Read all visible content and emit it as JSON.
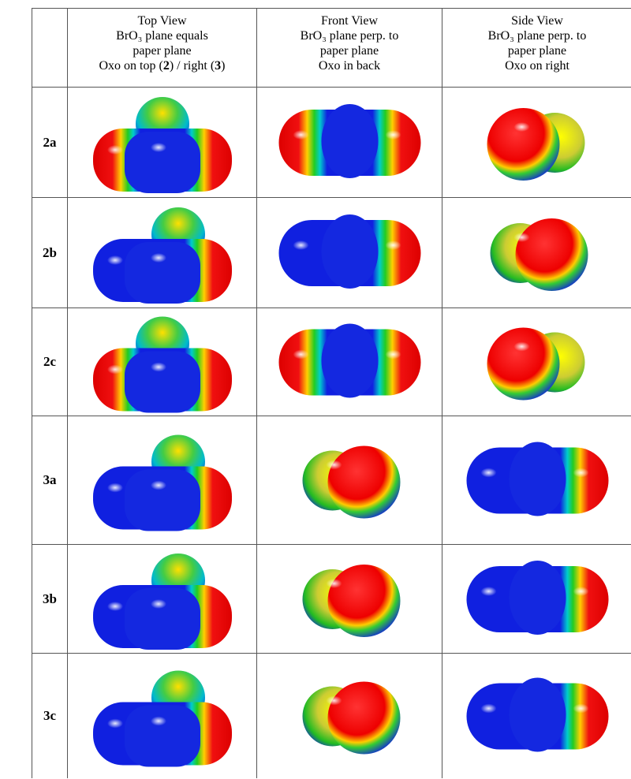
{
  "header": {
    "columns": [
      {
        "lines": [
          [
            "Top View"
          ],
          [
            "BrO₃ plane equals"
          ],
          [
            "paper plane"
          ],
          [
            "Oxo on top (",
            "2",
            ") / right (",
            "3",
            ")"
          ]
        ]
      },
      {
        "lines": [
          [
            "Front View"
          ],
          [
            "BrO₃ plane perp. to"
          ],
          [
            "paper plane"
          ],
          [
            "Oxo in back"
          ]
        ]
      },
      {
        "lines": [
          [
            "Side View"
          ],
          [
            "BrO₃ plane perp. to"
          ],
          [
            "paper plane"
          ],
          [
            "Oxo on right"
          ]
        ]
      }
    ]
  },
  "rows": [
    {
      "label": "2a"
    },
    {
      "label": "2b"
    },
    {
      "label": "2c"
    },
    {
      "label": "3a"
    },
    {
      "label": "3b"
    },
    {
      "label": "3c"
    }
  ]
}
